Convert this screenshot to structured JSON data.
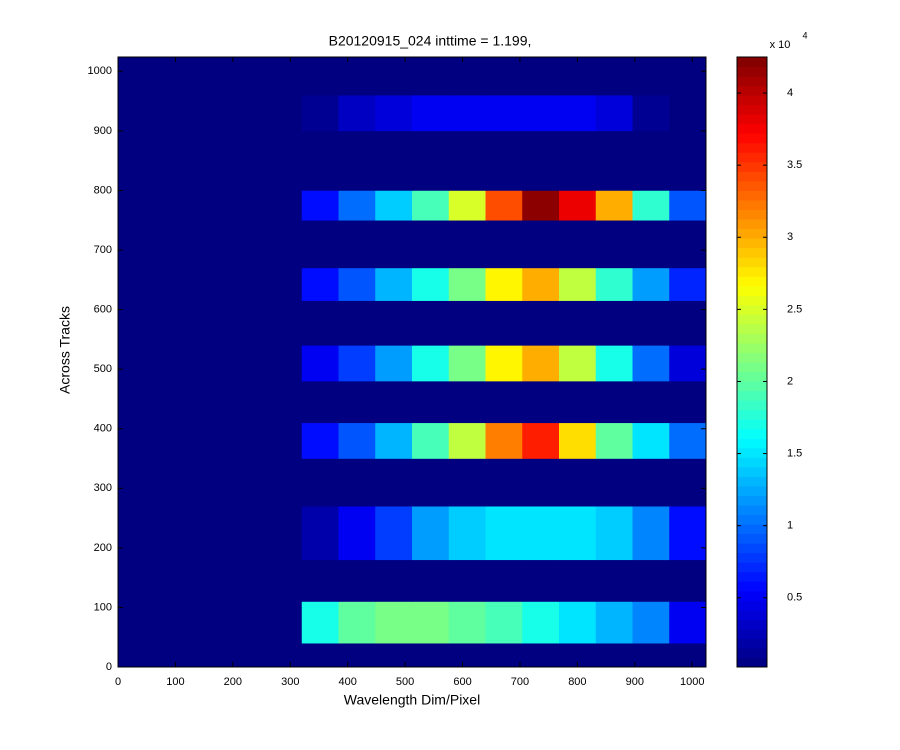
{
  "chart_data": {
    "type": "heatmap",
    "title": "B20120915_024 inttime = 1.199,",
    "xlabel": "Wavelength Dim/Pixel",
    "ylabel": "Across Tracks",
    "xlim": [
      0,
      1024
    ],
    "ylim": [
      0,
      1024
    ],
    "xticks": [
      0,
      100,
      200,
      300,
      400,
      500,
      600,
      700,
      800,
      900,
      1000
    ],
    "yticks": [
      0,
      100,
      200,
      300,
      400,
      500,
      600,
      700,
      800,
      900,
      1000
    ],
    "x_bins": [
      0,
      64,
      128,
      192,
      256,
      320,
      384,
      448,
      512,
      576,
      640,
      704,
      768,
      832,
      896,
      960,
      1024
    ],
    "y_bins": [
      0,
      40,
      110,
      180,
      270,
      350,
      410,
      480,
      540,
      615,
      670,
      750,
      800,
      900,
      960,
      1024
    ],
    "z": [
      [
        200,
        200,
        200,
        200,
        200,
        200,
        200,
        200,
        200,
        200,
        200,
        200,
        200,
        200,
        200,
        200
      ],
      [
        200,
        200,
        200,
        200,
        200,
        17000,
        20000,
        21000,
        21000,
        20000,
        19000,
        17000,
        15000,
        13000,
        11000,
        5000
      ],
      [
        200,
        200,
        200,
        200,
        200,
        200,
        200,
        200,
        200,
        200,
        200,
        200,
        200,
        200,
        200,
        200
      ],
      [
        200,
        200,
        200,
        200,
        200,
        2000,
        5000,
        8000,
        12000,
        14000,
        15000,
        15000,
        15000,
        14000,
        11000,
        6000
      ],
      [
        200,
        200,
        200,
        200,
        200,
        200,
        200,
        200,
        200,
        200,
        200,
        200,
        200,
        200,
        200,
        200
      ],
      [
        200,
        200,
        200,
        200,
        200,
        6000,
        9000,
        13000,
        19000,
        24000,
        32000,
        36000,
        28000,
        20000,
        15000,
        10000
      ],
      [
        200,
        200,
        200,
        200,
        200,
        200,
        200,
        200,
        200,
        200,
        200,
        200,
        200,
        200,
        200,
        200
      ],
      [
        200,
        200,
        200,
        200,
        200,
        5000,
        8000,
        12000,
        17000,
        21000,
        27000,
        30000,
        24000,
        17000,
        10000,
        4000
      ],
      [
        200,
        200,
        200,
        200,
        200,
        200,
        200,
        200,
        200,
        200,
        200,
        200,
        200,
        200,
        200,
        200
      ],
      [
        200,
        200,
        200,
        200,
        200,
        6000,
        9000,
        13000,
        17000,
        21000,
        27000,
        30000,
        24000,
        18000,
        12000,
        7000
      ],
      [
        200,
        200,
        200,
        200,
        200,
        200,
        200,
        200,
        200,
        200,
        200,
        200,
        200,
        200,
        200,
        200
      ],
      [
        200,
        200,
        200,
        200,
        200,
        6000,
        10000,
        14000,
        19000,
        25000,
        34000,
        42000,
        38000,
        30000,
        18000,
        9000
      ],
      [
        200,
        200,
        200,
        200,
        200,
        200,
        200,
        200,
        200,
        200,
        200,
        200,
        200,
        200,
        200,
        200
      ],
      [
        200,
        200,
        200,
        200,
        200,
        1000,
        3000,
        4000,
        5000,
        5000,
        5000,
        5000,
        5000,
        4000,
        1000,
        200
      ],
      [
        200,
        200,
        200,
        200,
        200,
        200,
        200,
        200,
        200,
        200,
        200,
        200,
        200,
        200,
        200,
        200
      ]
    ],
    "colormap": "jet",
    "clim": [
      200,
      42500
    ],
    "cticks": [
      {
        "value": 5000,
        "label": "0.5"
      },
      {
        "value": 10000,
        "label": "1"
      },
      {
        "value": 15000,
        "label": "1.5"
      },
      {
        "value": 20000,
        "label": "2"
      },
      {
        "value": 25000,
        "label": "2.5"
      },
      {
        "value": 30000,
        "label": "3"
      },
      {
        "value": 35000,
        "label": "3.5"
      },
      {
        "value": 40000,
        "label": "4"
      }
    ],
    "colorbar_multiplier": "x 10",
    "colorbar_exponent": "4"
  }
}
